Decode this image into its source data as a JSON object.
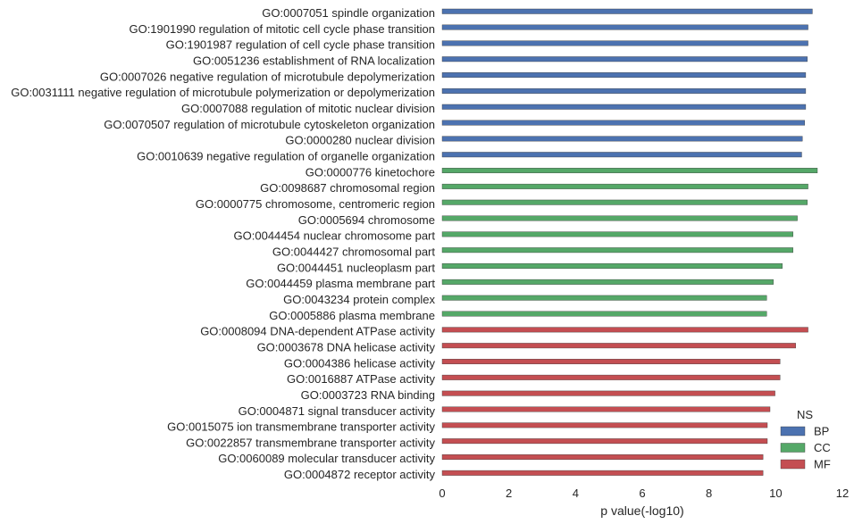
{
  "chart_data": {
    "type": "bar",
    "orientation": "horizontal",
    "xlabel": "p value(-log10)",
    "ylabel": "",
    "xlim": [
      0,
      12
    ],
    "xticks": [
      0,
      2,
      4,
      6,
      8,
      10,
      12
    ],
    "grid": false,
    "legend": {
      "title": "NS",
      "placement": "lower-right",
      "entries": [
        {
          "name": "BP",
          "color": "#4c72b0"
        },
        {
          "name": "CC",
          "color": "#55a868"
        },
        {
          "name": "MF",
          "color": "#c44e52"
        }
      ]
    },
    "bars": [
      {
        "label": "GO:0007051 spindle organization",
        "value": 11.1,
        "ns": "BP"
      },
      {
        "label": "GO:1901990 regulation of mitotic cell cycle phase transition",
        "value": 10.97,
        "ns": "BP"
      },
      {
        "label": "GO:1901987 regulation of cell cycle phase transition",
        "value": 10.97,
        "ns": "BP"
      },
      {
        "label": "GO:0051236 establishment of RNA localization",
        "value": 10.95,
        "ns": "BP"
      },
      {
        "label": "GO:0007026 negative regulation of microtubule depolymerization",
        "value": 10.9,
        "ns": "BP"
      },
      {
        "label": "GO:0031111 negative regulation of microtubule polymerization or depolymerization",
        "value": 10.9,
        "ns": "BP"
      },
      {
        "label": "GO:0007088 regulation of mitotic nuclear division",
        "value": 10.9,
        "ns": "BP"
      },
      {
        "label": "GO:0070507 regulation of microtubule cytoskeleton organization",
        "value": 10.87,
        "ns": "BP"
      },
      {
        "label": "GO:0000280 nuclear division",
        "value": 10.8,
        "ns": "BP"
      },
      {
        "label": "GO:0010639 negative regulation of organelle organization",
        "value": 10.78,
        "ns": "BP"
      },
      {
        "label": "GO:0000776 kinetochore",
        "value": 11.25,
        "ns": "CC"
      },
      {
        "label": "GO:0098687 chromosomal region",
        "value": 10.97,
        "ns": "CC"
      },
      {
        "label": "GO:0000775 chromosome, centromeric region",
        "value": 10.95,
        "ns": "CC"
      },
      {
        "label": "GO:0005694 chromosome",
        "value": 10.65,
        "ns": "CC"
      },
      {
        "label": "GO:0044454 nuclear chromosome part",
        "value": 10.52,
        "ns": "CC"
      },
      {
        "label": "GO:0044427 chromosomal part",
        "value": 10.52,
        "ns": "CC"
      },
      {
        "label": "GO:0044451 nucleoplasm part",
        "value": 10.2,
        "ns": "CC"
      },
      {
        "label": "GO:0044459 plasma membrane part",
        "value": 9.93,
        "ns": "CC"
      },
      {
        "label": "GO:0043234 protein complex",
        "value": 9.73,
        "ns": "CC"
      },
      {
        "label": "GO:0005886 plasma membrane",
        "value": 9.73,
        "ns": "CC"
      },
      {
        "label": "GO:0008094 DNA-dependent ATPase activity",
        "value": 10.97,
        "ns": "MF"
      },
      {
        "label": "GO:0003678 DNA helicase activity",
        "value": 10.6,
        "ns": "MF"
      },
      {
        "label": "GO:0004386 helicase activity",
        "value": 10.13,
        "ns": "MF"
      },
      {
        "label": "GO:0016887 ATPase activity",
        "value": 10.13,
        "ns": "MF"
      },
      {
        "label": "GO:0003723 RNA binding",
        "value": 9.98,
        "ns": "MF"
      },
      {
        "label": "GO:0004871 signal transducer activity",
        "value": 9.83,
        "ns": "MF"
      },
      {
        "label": "GO:0015075 ion transmembrane transporter activity",
        "value": 9.75,
        "ns": "MF"
      },
      {
        "label": "GO:0022857 transmembrane transporter activity",
        "value": 9.75,
        "ns": "MF"
      },
      {
        "label": "GO:0060089 molecular transducer activity",
        "value": 9.62,
        "ns": "MF"
      },
      {
        "label": "GO:0004872 receptor activity",
        "value": 9.62,
        "ns": "MF"
      }
    ]
  }
}
